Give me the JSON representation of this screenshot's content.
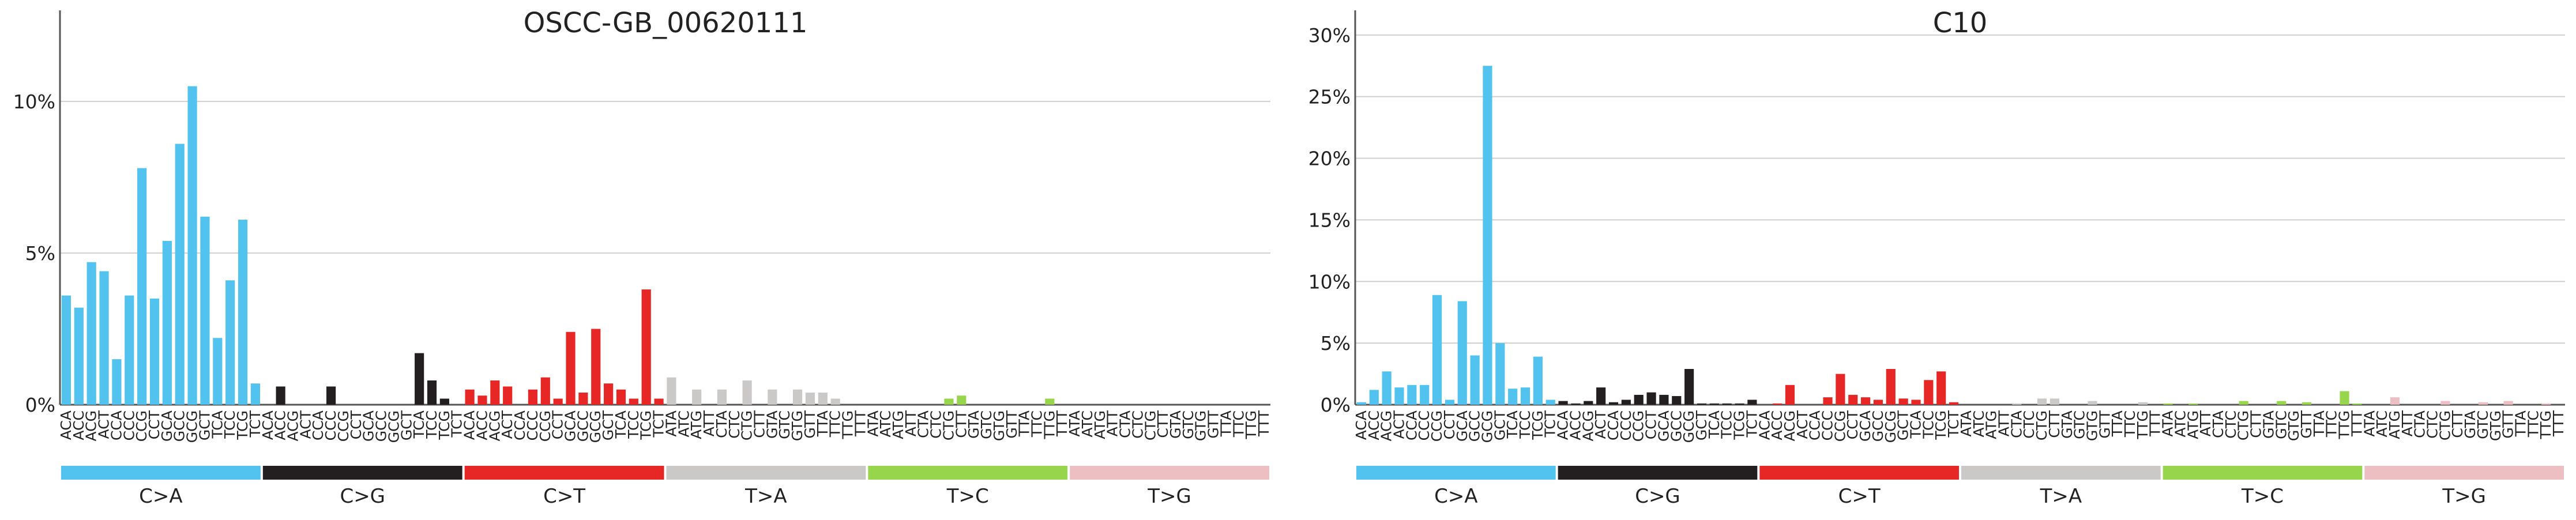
{
  "chart_data": [
    {
      "type": "bar",
      "title": "OSCC-GB_00620111",
      "ylim": [
        0,
        13
      ],
      "yticks": [
        0,
        5,
        10
      ],
      "ytick_labels": [
        "0%",
        "5%",
        "10%"
      ],
      "grid": true,
      "context_labels": [
        "ACA",
        "ACC",
        "ACG",
        "ACT",
        "CCA",
        "CCC",
        "CCG",
        "CCT",
        "GCA",
        "GCC",
        "GCG",
        "GCT",
        "TCA",
        "TCC",
        "TCG",
        "TCT",
        "ACA",
        "ACC",
        "ACG",
        "ACT",
        "CCA",
        "CCC",
        "CCG",
        "CCT",
        "GCA",
        "GCC",
        "GCG",
        "GCT",
        "TCA",
        "TCC",
        "TCG",
        "TCT",
        "ACA",
        "ACC",
        "ACG",
        "ACT",
        "CCA",
        "CCC",
        "CCG",
        "CCT",
        "GCA",
        "GCC",
        "GCG",
        "GCT",
        "TCA",
        "TCC",
        "TCG",
        "TCT",
        "ATA",
        "ATC",
        "ATG",
        "ATT",
        "CTA",
        "CTC",
        "CTG",
        "CTT",
        "GTA",
        "GTC",
        "GTG",
        "GTT",
        "TTA",
        "TTC",
        "TTG",
        "TTT",
        "ATA",
        "ATC",
        "ATG",
        "ATT",
        "CTA",
        "CTC",
        "CTG",
        "CTT",
        "GTA",
        "GTC",
        "GTG",
        "GTT",
        "TTA",
        "TTC",
        "TTG",
        "TTT",
        "ATA",
        "ATC",
        "ATG",
        "ATT",
        "CTA",
        "CTC",
        "CTG",
        "CTT",
        "GTA",
        "GTC",
        "GTG",
        "GTT",
        "TTA",
        "TTC",
        "TTG",
        "TTT"
      ],
      "groups": [
        "C>A",
        "C>G",
        "C>T",
        "T>A",
        "T>C",
        "T>G"
      ],
      "group_colors": [
        "#52c3ef",
        "#231f20",
        "#e62725",
        "#cbc9c8",
        "#97d54c",
        "#edbfc2"
      ],
      "values": [
        3.6,
        3.2,
        4.7,
        4.4,
        1.5,
        3.6,
        7.8,
        3.5,
        5.4,
        8.6,
        10.5,
        6.2,
        2.2,
        4.1,
        6.1,
        0.7,
        0,
        0.6,
        0,
        0,
        0,
        0.6,
        0,
        0,
        0,
        0,
        0,
        0,
        1.7,
        0.8,
        0.2,
        0,
        0.5,
        0.3,
        0.8,
        0.6,
        0,
        0.5,
        0.9,
        0.2,
        2.4,
        0.4,
        2.5,
        0.7,
        0.5,
        0.2,
        3.8,
        0.2,
        0.9,
        0,
        0.5,
        0,
        0.5,
        0,
        0.8,
        0,
        0.5,
        0,
        0.5,
        0.4,
        0.4,
        0.2,
        0,
        0,
        0,
        0,
        0,
        0,
        0,
        0,
        0.2,
        0.3,
        0,
        0,
        0,
        0,
        0,
        0,
        0.2,
        0,
        0,
        0,
        0,
        0,
        0,
        0,
        0,
        0,
        0,
        0,
        0,
        0,
        0,
        0,
        0,
        0
      ]
    },
    {
      "type": "bar",
      "title": "C10",
      "ylim": [
        0,
        32
      ],
      "yticks": [
        0,
        5,
        10,
        15,
        20,
        25,
        30
      ],
      "ytick_labels": [
        "0%",
        "5%",
        "10%",
        "15%",
        "20%",
        "25%",
        "30%"
      ],
      "grid": true,
      "context_labels": [
        "ACA",
        "ACC",
        "ACG",
        "ACT",
        "CCA",
        "CCC",
        "CCG",
        "CCT",
        "GCA",
        "GCC",
        "GCG",
        "GCT",
        "TCA",
        "TCC",
        "TCG",
        "TCT",
        "ACA",
        "ACC",
        "ACG",
        "ACT",
        "CCA",
        "CCC",
        "CCG",
        "CCT",
        "GCA",
        "GCC",
        "GCG",
        "GCT",
        "TCA",
        "TCC",
        "TCG",
        "TCT",
        "ACA",
        "ACC",
        "ACG",
        "ACT",
        "CCA",
        "CCC",
        "CCG",
        "CCT",
        "GCA",
        "GCC",
        "GCG",
        "GCT",
        "TCA",
        "TCC",
        "TCG",
        "TCT",
        "ATA",
        "ATC",
        "ATG",
        "ATT",
        "CTA",
        "CTC",
        "CTG",
        "CTT",
        "GTA",
        "GTC",
        "GTG",
        "GTT",
        "TTA",
        "TTC",
        "TTG",
        "TTT",
        "ATA",
        "ATC",
        "ATG",
        "ATT",
        "CTA",
        "CTC",
        "CTG",
        "CTT",
        "GTA",
        "GTC",
        "GTG",
        "GTT",
        "TTA",
        "TTC",
        "TTG",
        "TTT",
        "ATA",
        "ATC",
        "ATG",
        "ATT",
        "CTA",
        "CTC",
        "CTG",
        "CTT",
        "GTA",
        "GTC",
        "GTG",
        "GTT",
        "TTA",
        "TTC",
        "TTG",
        "TTT"
      ],
      "groups": [
        "C>A",
        "C>G",
        "C>T",
        "T>A",
        "T>C",
        "T>G"
      ],
      "group_colors": [
        "#52c3ef",
        "#231f20",
        "#e62725",
        "#cbc9c8",
        "#97d54c",
        "#edbfc2"
      ],
      "values": [
        0.2,
        1.2,
        2.7,
        1.4,
        1.6,
        1.6,
        8.9,
        0.4,
        8.4,
        4.0,
        27.5,
        5.0,
        1.3,
        1.4,
        3.9,
        0.4,
        0.3,
        0.1,
        0.3,
        1.4,
        0.2,
        0.4,
        0.8,
        1.0,
        0.8,
        0.7,
        2.9,
        0.1,
        0.1,
        0.1,
        0.1,
        0.4,
        0,
        0.1,
        1.6,
        0,
        0,
        0.6,
        2.5,
        0.8,
        0.6,
        0.4,
        2.9,
        0.5,
        0.4,
        2.0,
        2.7,
        0.2,
        0,
        0,
        0,
        0,
        0.1,
        0,
        0.5,
        0.5,
        0,
        0,
        0.3,
        0,
        0,
        0,
        0.2,
        0,
        0.1,
        0,
        0.1,
        0,
        0,
        0,
        0.3,
        0,
        0,
        0.3,
        0,
        0.2,
        0,
        0,
        1.1,
        0.1,
        0,
        0,
        0.6,
        0,
        0,
        0,
        0.3,
        0,
        0,
        0.2,
        0,
        0.3,
        0,
        0,
        0.1,
        0
      ]
    }
  ]
}
